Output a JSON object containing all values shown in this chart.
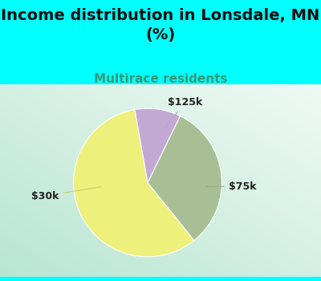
{
  "title": "Income distribution in Lonsdale, MN\n(%)",
  "subtitle": "Multirace residents",
  "title_fontsize": 14,
  "subtitle_fontsize": 11,
  "title_color": "#111111",
  "subtitle_color": "#339977",
  "slices": [
    {
      "label": "$30k",
      "value": 58,
      "color": "#eef07c"
    },
    {
      "label": "$75k",
      "value": 32,
      "color": "#a8bf96"
    },
    {
      "label": "$125k",
      "value": 10,
      "color": "#c4a8d4"
    }
  ],
  "label_fontsize": 9,
  "bg_color": "#00ffff",
  "startangle": 100
}
